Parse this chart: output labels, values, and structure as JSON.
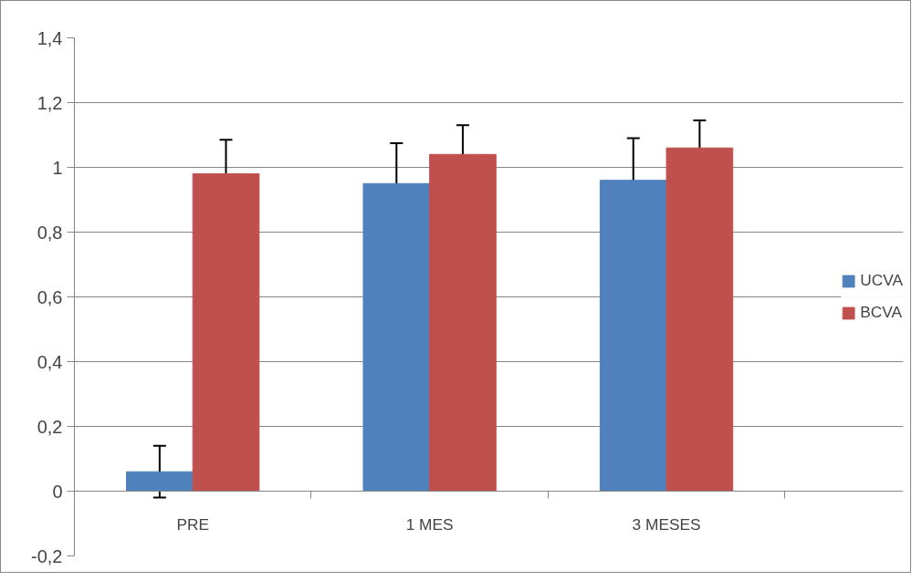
{
  "chart_data": {
    "type": "bar",
    "categories": [
      "PRE",
      "1 MES",
      "3 MESES"
    ],
    "series": [
      {
        "name": "UCVA",
        "color": "#4f81bd",
        "values": [
          0.06,
          0.95,
          0.96
        ],
        "errors": [
          0.08,
          0.125,
          0.13
        ]
      },
      {
        "name": "BCVA",
        "color": "#c0504d",
        "values": [
          0.98,
          1.04,
          1.06
        ],
        "errors": [
          0.105,
          0.09,
          0.085
        ]
      }
    ],
    "ylim": [
      -0.2,
      1.4
    ],
    "yticks": [
      {
        "value": -0.2,
        "label": "-0,2"
      },
      0,
      {
        "value": 0.2,
        "label": "0,2"
      },
      {
        "value": 0.4,
        "label": "0,4"
      },
      {
        "value": 0.6,
        "label": "0,6"
      },
      {
        "value": 0.8,
        "label": "0,8"
      },
      1,
      {
        "value": 1.2,
        "label": "1,2"
      },
      {
        "value": 1.4,
        "label": "1,4"
      }
    ],
    "grid": "y",
    "legend": "right"
  }
}
